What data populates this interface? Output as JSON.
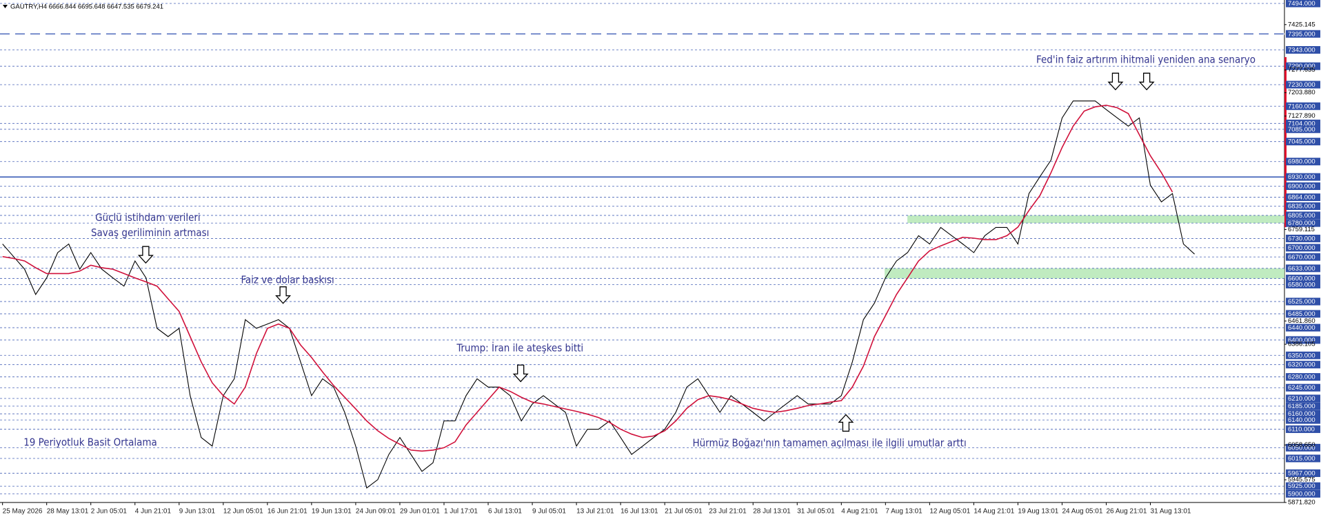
{
  "chart_data": {
    "type": "line",
    "title": "GAUTRY,H4  6666.844 6695.648 6647.535 6679.241",
    "categories": [
      "25 May 2026",
      null,
      null,
      null,
      "28 May 13:01",
      null,
      null,
      null,
      "2 Jun 05:01",
      null,
      null,
      null,
      "4 Jun 21:01",
      null,
      null,
      null,
      "9 Jun 13:01",
      null,
      null,
      null,
      "12 Jun 05:01",
      null,
      null,
      null,
      "16 Jun 21:01",
      null,
      null,
      null,
      "19 Jun 13:01",
      null,
      null,
      null,
      "24 Jun 09:01",
      null,
      null,
      null,
      "29 Jun 01:01",
      null,
      null,
      null,
      "1 Jul 17:01",
      null,
      null,
      null,
      "6 Jul 13:01",
      null,
      null,
      null,
      "9 Jul 05:01",
      null,
      null,
      null,
      "13 Jul 21:01",
      null,
      null,
      null,
      "16 Jul 13:01",
      null,
      null,
      null,
      "21 Jul 05:01",
      null,
      null,
      null,
      "23 Jul 21:01",
      null,
      null,
      null,
      "28 Jul 13:01",
      null,
      null,
      null,
      "31 Jul 05:01",
      null,
      null,
      null,
      "4 Aug 21:01",
      null,
      null,
      null,
      "7 Aug 13:01",
      null,
      null,
      null,
      "12 Aug 05:01",
      null,
      null,
      null,
      "14 Aug 21:01",
      null,
      null,
      null,
      "19 Aug 13:01",
      null,
      null,
      null,
      "24 Aug 05:01",
      null,
      null,
      null,
      "26 Aug 21:01",
      null,
      null,
      null,
      "31 Aug 13:01",
      null,
      null,
      null,
      null
    ],
    "series": [
      {
        "color": "#000000",
        "values": [
          6712,
          6671,
          6630,
          6548,
          6602,
          6684,
          6712,
          6630,
          6684,
          6630,
          6602,
          6575,
          6657,
          6602,
          6438,
          6411,
          6438,
          6219,
          6083,
          6055,
          6219,
          6274,
          6466,
          6438,
          6452,
          6466,
          6438,
          6329,
          6219,
          6274,
          6247,
          6165,
          6055,
          5919,
          5946,
          6028,
          6083,
          6028,
          5973,
          6001,
          6137,
          6137,
          6219,
          6274,
          6247,
          6247,
          6219,
          6137,
          6192,
          6219,
          6192,
          6165,
          6055,
          6110,
          6110,
          6137,
          6083,
          6028,
          6055,
          6083,
          6110,
          6165,
          6247,
          6274,
          6219,
          6165,
          6219,
          6192,
          6165,
          6137,
          6165,
          6192,
          6219,
          6192,
          6192,
          6192,
          6219,
          6329,
          6466,
          6520,
          6602,
          6657,
          6684,
          6739,
          6712,
          6766,
          6739,
          6712,
          6684,
          6739,
          6766,
          6766,
          6712,
          6876,
          6931,
          6985,
          7122,
          7177,
          7177,
          7177,
          7149,
          7122,
          7095,
          7122,
          6903,
          6849,
          6876,
          6712,
          6679
        ]
      },
      {
        "name": "19 Periyotluk Basit Ortalama",
        "color": "#d0103a",
        "values": [
          6671,
          6665,
          6657,
          6635,
          6616,
          6616,
          6616,
          6624,
          6643,
          6635,
          6630,
          6616,
          6602,
          6589,
          6575,
          6534,
          6493,
          6411,
          6329,
          6261,
          6219,
          6192,
          6247,
          6356,
          6438,
          6452,
          6438,
          6384,
          6343,
          6296,
          6252,
          6214,
          6176,
          6137,
          6105,
          6080,
          6061,
          6042,
          6039,
          6042,
          6050,
          6069,
          6124,
          6165,
          6206,
          6247,
          6233,
          6214,
          6198,
          6192,
          6184,
          6176,
          6168,
          6159,
          6148,
          6132,
          6110,
          6094,
          6083,
          6088,
          6105,
          6137,
          6178,
          6206,
          6219,
          6214,
          6206,
          6192,
          6178,
          6170,
          6165,
          6170,
          6178,
          6187,
          6192,
          6198,
          6203,
          6247,
          6315,
          6411,
          6479,
          6548,
          6602,
          6657,
          6690,
          6706,
          6720,
          6734,
          6731,
          6726,
          6726,
          6739,
          6767,
          6821,
          6870,
          6944,
          7026,
          7095,
          7144,
          7158,
          7163,
          7155,
          7136,
          7067,
          6999,
          6944,
          6881,
          null,
          null
        ]
      }
    ],
    "ylim": [
      5871.82,
      7494
    ],
    "yticks": [
      {
        "value": 7425.145,
        "label": "7425.145"
      },
      {
        "value": 7277.635,
        "label": "7277.635"
      },
      {
        "value": 7203.88,
        "label": "7203.880"
      },
      {
        "value": 7127.89,
        "label": "7127.890"
      },
      {
        "value": 6759.115,
        "label": "6759.115"
      },
      {
        "value": 6461.86,
        "label": "6461.860"
      },
      {
        "value": 6386.105,
        "label": "6386.105"
      },
      {
        "value": 6058.65,
        "label": "6058.650"
      },
      {
        "value": 5945.575,
        "label": "5945.575"
      },
      {
        "value": 5871.82,
        "label": "5871.820"
      }
    ],
    "levels": [
      {
        "value": 7494,
        "label": "7494.000"
      },
      {
        "value": 7395,
        "label": "7395.000"
      },
      {
        "value": 7343,
        "label": "7343.000"
      },
      {
        "value": 7290,
        "label": "7290.000"
      },
      {
        "value": 7230,
        "label": "7230.000"
      },
      {
        "value": 7160,
        "label": "7160.000"
      },
      {
        "value": 7104,
        "label": "7104.000"
      },
      {
        "value": 7085,
        "label": "7085.000"
      },
      {
        "value": 7045,
        "label": "7045.000"
      },
      {
        "value": 6980,
        "label": "6980.000"
      },
      {
        "value": 6930,
        "label": "6930.000"
      },
      {
        "value": 6900,
        "label": "6900.000"
      },
      {
        "value": 6864,
        "label": "6864.000"
      },
      {
        "value": 6835,
        "label": "6835.000"
      },
      {
        "value": 6805,
        "label": "6805.000"
      },
      {
        "value": 6780,
        "label": "6780.000"
      },
      {
        "value": 6730,
        "label": "6730.000"
      },
      {
        "value": 6700,
        "label": "6700.000"
      },
      {
        "value": 6670,
        "label": "6670.000"
      },
      {
        "value": 6633,
        "label": "6633.000"
      },
      {
        "value": 6600,
        "label": "6600.000"
      },
      {
        "value": 6580,
        "label": "6580.000"
      },
      {
        "value": 6525,
        "label": "6525.000"
      },
      {
        "value": 6485,
        "label": "6485.000"
      },
      {
        "value": 6440,
        "label": "6440.000"
      },
      {
        "value": 6400,
        "label": "6400.000"
      },
      {
        "value": 6350,
        "label": "6350.000"
      },
      {
        "value": 6320,
        "label": "6320.000"
      },
      {
        "value": 6280,
        "label": "6280.000"
      },
      {
        "value": 6245,
        "label": "6245.000"
      },
      {
        "value": 6210,
        "label": "6210.000"
      },
      {
        "value": 6185,
        "label": "6185.000"
      },
      {
        "value": 6160,
        "label": "6160.000"
      },
      {
        "value": 6140,
        "label": "6140.000"
      },
      {
        "value": 6110,
        "label": "6110.000"
      },
      {
        "value": 6050,
        "label": "6050.000"
      },
      {
        "value": 6015,
        "label": "6015.000"
      },
      {
        "value": 5967,
        "label": "5967.000"
      },
      {
        "value": 5925,
        "label": "5925.000"
      },
      {
        "value": 5900,
        "label": "5900.000"
      }
    ],
    "solid_level": 6930,
    "long_dash_level": 7395,
    "zones": [
      [
        6780,
        6805
      ],
      [
        6600,
        6633
      ]
    ],
    "zone_color": "#b5e8b5",
    "level_color": "#2f4fa8",
    "annotations": [
      "Fed'in faiz artırım ihitmali yeniden ana senaryo",
      "Güçlü istihdam verileri",
      "Savaş geriliminin artması",
      "Faiz ve dolar baskısı",
      "Trump: İran ile ateşkes bitti",
      "Hürmüz Boğazı'nın tamamen açılması ile ilgili umutlar arttı"
    ]
  }
}
